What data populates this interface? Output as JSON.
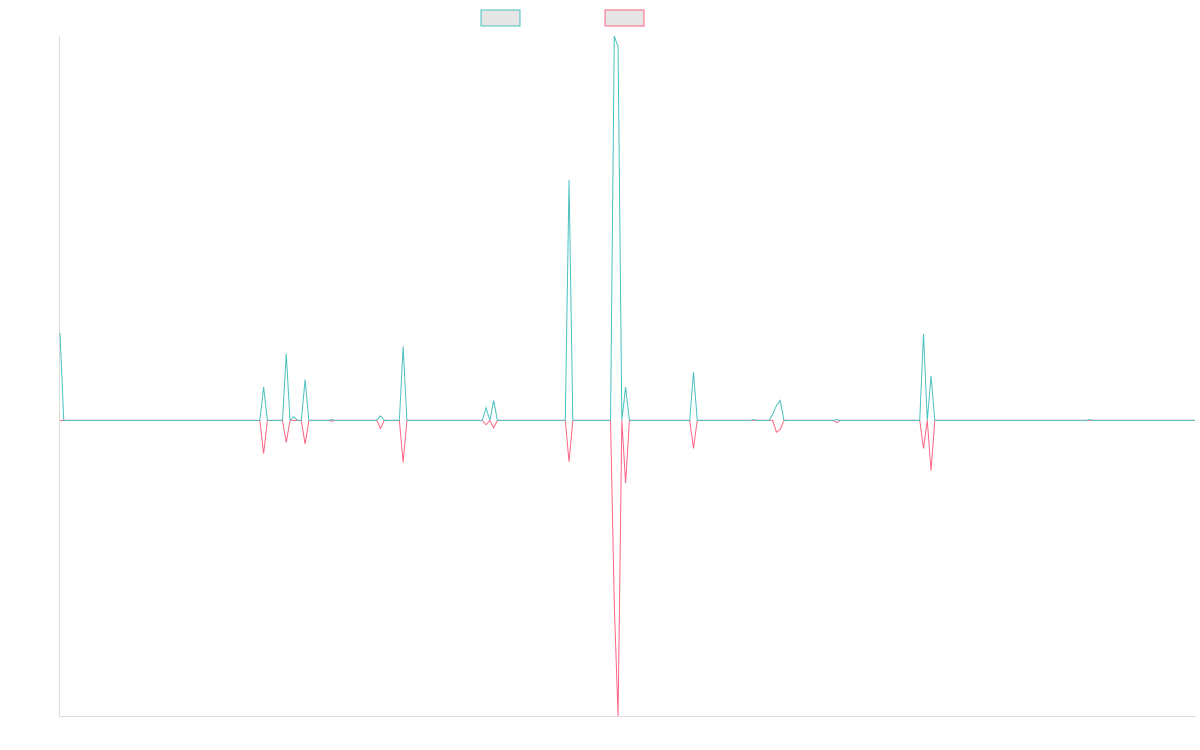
{
  "chart_data": {
    "type": "line",
    "title": "",
    "xlabel": "",
    "ylabel": "",
    "legend_position": "top-center",
    "grid": false,
    "ylim": [
      -400,
      520
    ],
    "x_count": 302,
    "series": [
      {
        "name": "",
        "color": "#4bc0c0",
        "points": [
          [
            0,
            118
          ],
          [
            1,
            0
          ],
          [
            53,
            0
          ],
          [
            54,
            45
          ],
          [
            55,
            0
          ],
          [
            59,
            0
          ],
          [
            60,
            90
          ],
          [
            61,
            0
          ],
          [
            62,
            5
          ],
          [
            63,
            0
          ],
          [
            64,
            0
          ],
          [
            65,
            55
          ],
          [
            66,
            0
          ],
          [
            71,
            0
          ],
          [
            72,
            1
          ],
          [
            73,
            0
          ],
          [
            84,
            0
          ],
          [
            85,
            6
          ],
          [
            86,
            0
          ],
          [
            90,
            0
          ],
          [
            91,
            100
          ],
          [
            92,
            0
          ],
          [
            112,
            0
          ],
          [
            113,
            17
          ],
          [
            114,
            0
          ],
          [
            115,
            27
          ],
          [
            116,
            0
          ],
          [
            134,
            0
          ],
          [
            135,
            325
          ],
          [
            136,
            0
          ],
          [
            146,
            0
          ],
          [
            147,
            520
          ],
          [
            148,
            505
          ],
          [
            149,
            0
          ],
          [
            150,
            45
          ],
          [
            151,
            0
          ],
          [
            167,
            0
          ],
          [
            168,
            65
          ],
          [
            169,
            0
          ],
          [
            183,
            0
          ],
          [
            184,
            1
          ],
          [
            185,
            0
          ],
          [
            188,
            0
          ],
          [
            189,
            8
          ],
          [
            190,
            20
          ],
          [
            191,
            27
          ],
          [
            192,
            0
          ],
          [
            205,
            0
          ],
          [
            206,
            1
          ],
          [
            207,
            0
          ],
          [
            228,
            0
          ],
          [
            229,
            117
          ],
          [
            230,
            0
          ],
          [
            231,
            60
          ],
          [
            232,
            0
          ],
          [
            272,
            0
          ],
          [
            273,
            1
          ],
          [
            274,
            0
          ],
          [
            301,
            0
          ]
        ]
      },
      {
        "name": "",
        "color": "#ff6384",
        "points": [
          [
            0,
            0
          ],
          [
            53,
            0
          ],
          [
            54,
            -45
          ],
          [
            55,
            0
          ],
          [
            59,
            0
          ],
          [
            60,
            -30
          ],
          [
            61,
            0
          ],
          [
            62,
            0
          ],
          [
            63,
            0
          ],
          [
            64,
            0
          ],
          [
            65,
            -32
          ],
          [
            66,
            0
          ],
          [
            71,
            0
          ],
          [
            72,
            -1
          ],
          [
            73,
            0
          ],
          [
            84,
            0
          ],
          [
            85,
            -11
          ],
          [
            86,
            0
          ],
          [
            90,
            0
          ],
          [
            91,
            -57
          ],
          [
            92,
            0
          ],
          [
            112,
            0
          ],
          [
            113,
            -6
          ],
          [
            114,
            0
          ],
          [
            115,
            -10
          ],
          [
            116,
            0
          ],
          [
            134,
            0
          ],
          [
            135,
            -56
          ],
          [
            136,
            0
          ],
          [
            146,
            0
          ],
          [
            147,
            -250
          ],
          [
            148,
            -400
          ],
          [
            149,
            0
          ],
          [
            150,
            -85
          ],
          [
            151,
            0
          ],
          [
            167,
            0
          ],
          [
            168,
            -38
          ],
          [
            169,
            0
          ],
          [
            183,
            0
          ],
          [
            184,
            0
          ],
          [
            185,
            0
          ],
          [
            188,
            0
          ],
          [
            189,
            0
          ],
          [
            190,
            -16
          ],
          [
            191,
            -12
          ],
          [
            192,
            0
          ],
          [
            205,
            0
          ],
          [
            206,
            -3
          ],
          [
            207,
            0
          ],
          [
            228,
            0
          ],
          [
            229,
            -38
          ],
          [
            230,
            0
          ],
          [
            231,
            -68
          ],
          [
            232,
            0
          ],
          [
            272,
            0
          ],
          [
            301,
            0
          ]
        ]
      }
    ]
  }
}
